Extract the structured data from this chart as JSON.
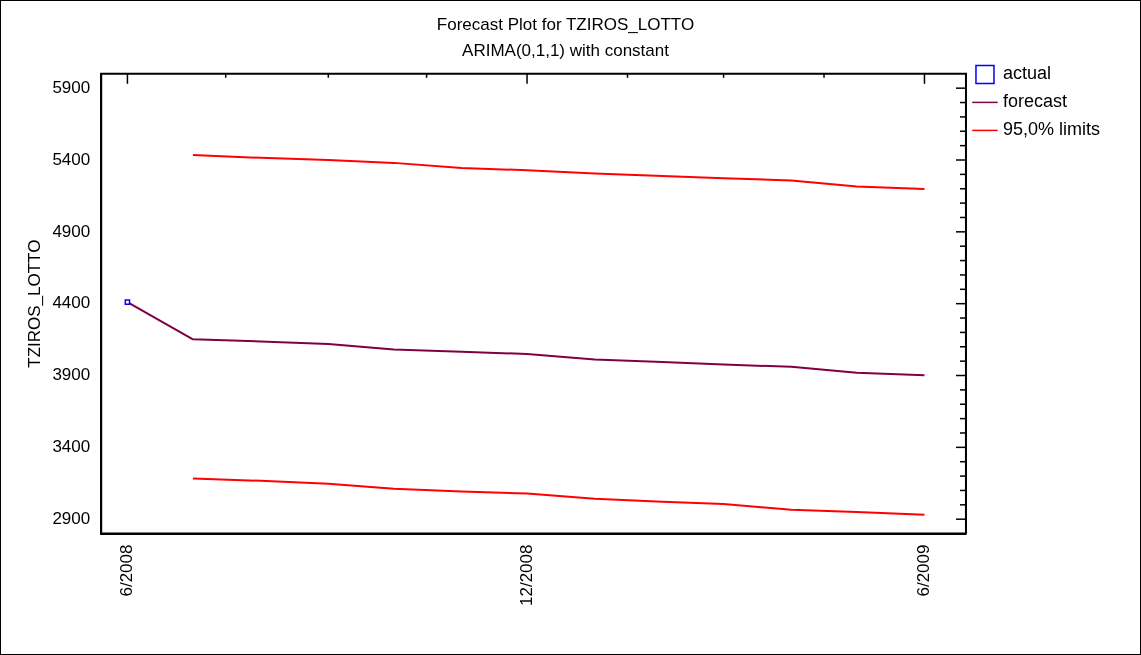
{
  "chart_data": {
    "type": "line",
    "title": "Forecast Plot for TZIROS_LOTTO",
    "subtitle": "ARIMA(0,1,1) with constant",
    "ylabel": "TZIROS_LOTTO",
    "xlim": [
      "2008-05-20",
      "2009-06-20"
    ],
    "xticks": [
      {
        "value": "2008-06",
        "label": "6/2008"
      },
      {
        "value": "2008-07-16",
        "label": null
      },
      {
        "value": "2008-09",
        "label": null
      },
      {
        "value": "2008-10-16",
        "label": null
      },
      {
        "value": "2008-12",
        "label": "12/2008"
      },
      {
        "value": "2009-01-16",
        "label": null
      },
      {
        "value": "2009-03",
        "label": null
      },
      {
        "value": "2009-04-16",
        "label": null
      },
      {
        "value": "2009-06",
        "label": "6/2009"
      }
    ],
    "ylim": [
      2800,
      6000
    ],
    "yticks": [
      2900,
      {
        "value": 3000,
        "label": null
      },
      {
        "value": 3100,
        "label": null
      },
      {
        "value": 3200,
        "label": null
      },
      {
        "value": 3300,
        "label": null
      },
      3400,
      {
        "value": 3500,
        "label": null
      },
      {
        "value": 3600,
        "label": null
      },
      {
        "value": 3700,
        "label": null
      },
      {
        "value": 3800,
        "label": null
      },
      3900,
      {
        "value": 4000,
        "label": null
      },
      {
        "value": 4100,
        "label": null
      },
      {
        "value": 4200,
        "label": null
      },
      {
        "value": 4300,
        "label": null
      },
      4400,
      {
        "value": 4500,
        "label": null
      },
      {
        "value": 4600,
        "label": null
      },
      {
        "value": 4700,
        "label": null
      },
      {
        "value": 4800,
        "label": null
      },
      4900,
      {
        "value": 5000,
        "label": null
      },
      {
        "value": 5100,
        "label": null
      },
      {
        "value": 5200,
        "label": null
      },
      {
        "value": 5300,
        "label": null
      },
      5400,
      {
        "value": 5500,
        "label": null
      },
      {
        "value": 5600,
        "label": null
      },
      {
        "value": 5700,
        "label": null
      },
      {
        "value": 5800,
        "label": null
      },
      5900
    ],
    "grid": false,
    "legend": "right",
    "line_style": "solid",
    "series": [
      {
        "name": "actual",
        "color": "#0000ff",
        "marker": "square",
        "x": [
          "2008-06"
        ],
        "values": [
          4410
        ]
      },
      {
        "name": "forecast",
        "color": "#800040",
        "marker": "none",
        "x": [
          "2008-06",
          "2008-07",
          "2008-08",
          "2008-09",
          "2008-10",
          "2008-11",
          "2008-12",
          "2009-01",
          "2009-02",
          "2009-03",
          "2009-04",
          "2009-05",
          "2009-06"
        ],
        "values": [
          4410,
          4152,
          4137,
          4119,
          4081,
          4065,
          4050,
          4012,
          3994,
          3976,
          3961,
          3920,
          3902
        ]
      },
      {
        "name": "95,0% limits",
        "color": "#ff0000",
        "marker": "none",
        "x": [
          "2008-07",
          "2008-08",
          "2008-09",
          "2008-10",
          "2008-11",
          "2008-12",
          "2009-01",
          "2009-02",
          "2009-03",
          "2009-04",
          "2009-05",
          "2009-06"
        ],
        "values": [
          5434,
          5415,
          5400,
          5380,
          5344,
          5329,
          5306,
          5288,
          5273,
          5258,
          5216,
          5199
        ]
      },
      {
        "color": "#ff0000",
        "marker": "none",
        "x": [
          "2008-07",
          "2008-08",
          "2008-09",
          "2008-10",
          "2008-11",
          "2008-12",
          "2009-01",
          "2009-02",
          "2009-03",
          "2009-04",
          "2009-05",
          "2009-06"
        ],
        "values": [
          3183,
          3167,
          3147,
          3111,
          3093,
          3078,
          3042,
          3022,
          3006,
          2965,
          2950,
          2930
        ]
      }
    ]
  }
}
